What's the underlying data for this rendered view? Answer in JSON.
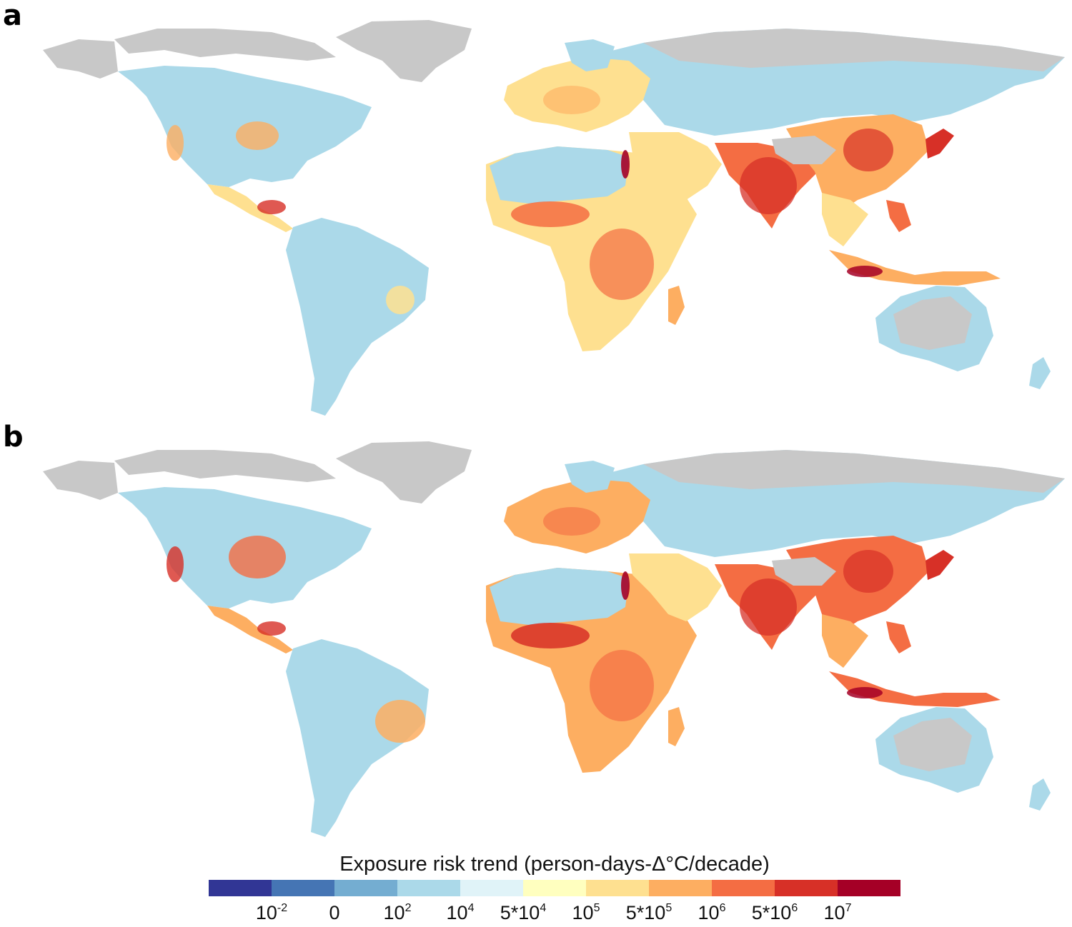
{
  "panels": [
    {
      "label": "a"
    },
    {
      "label": "b"
    }
  ],
  "legend": {
    "title": "Exposure risk trend (person-days-Δ°C/decade)",
    "colors": [
      "#313695",
      "#4575b4",
      "#74add1",
      "#abd9e9",
      "#e0f3f8",
      "#ffffbf",
      "#fee090",
      "#fdae61",
      "#f46d43",
      "#d73027",
      "#a50026"
    ],
    "ticks": [
      {
        "base": "10",
        "exp": "-2"
      },
      {
        "base": "0",
        "exp": ""
      },
      {
        "base": "10",
        "exp": "2"
      },
      {
        "base": "10",
        "exp": "4"
      },
      {
        "base": "5*10",
        "exp": "4"
      },
      {
        "base": "10",
        "exp": "5"
      },
      {
        "base": "5*10",
        "exp": "5"
      },
      {
        "base": "10",
        "exp": "6"
      },
      {
        "base": "5*10",
        "exp": "6"
      },
      {
        "base": "10",
        "exp": "7"
      }
    ]
  },
  "map_colors": {
    "no_data": "#c8c8c8",
    "low": "#abd9e9",
    "very_low": "#e0f3f8",
    "mid": "#fee090",
    "mid_high": "#fdae61",
    "high": "#f46d43",
    "very_high": "#d73027",
    "extreme": "#a50026"
  }
}
